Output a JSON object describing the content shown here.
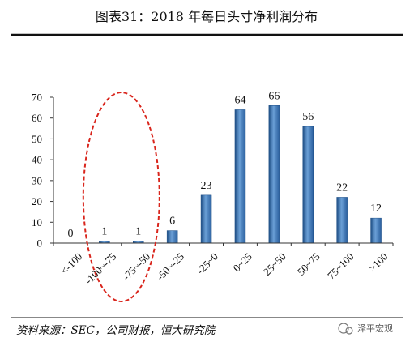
{
  "title": "图表31：2018 年每日头寸净利润分布",
  "source": "资料来源：SEC，公司财报，恒大研究院",
  "watermark": "泽平宏观",
  "colors": {
    "bar_top": "#6a9fd6",
    "bar_mid": "#3f7fc4",
    "bar_dark": "#1f4f86",
    "highlight": "#d9251c"
  },
  "chart_data": {
    "type": "bar",
    "title": "",
    "xlabel": "",
    "ylabel": "",
    "categories": [
      "<-100",
      "-100~-75",
      "-75~-50",
      "-50~-25",
      "-25~0",
      "0~25",
      "25~50",
      "50~75",
      "75~100",
      ">100"
    ],
    "values": [
      0,
      1,
      1,
      6,
      23,
      64,
      66,
      56,
      22,
      12
    ],
    "ylim": [
      0,
      70
    ],
    "yticks": [
      0,
      10,
      20,
      30,
      40,
      50,
      60,
      70
    ],
    "grid": false,
    "legend": "none",
    "annotation": "dashed red ellipse around -100~-75 and -75~-50"
  }
}
